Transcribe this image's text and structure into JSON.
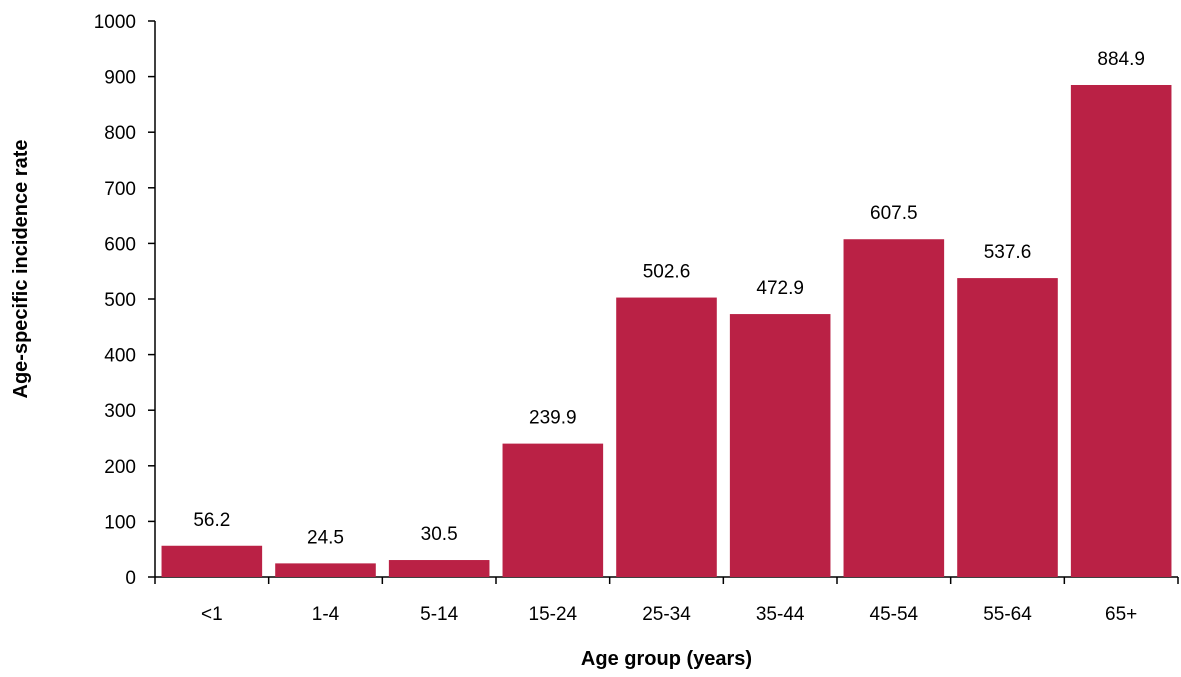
{
  "chart_data": {
    "type": "bar",
    "title": "",
    "xlabel": "Age group (years)",
    "ylabel": "Age-specific incidence rate",
    "categories": [
      "<1",
      "1-4",
      "5-14",
      "15-24",
      "25-34",
      "35-44",
      "45-54",
      "55-64",
      "65+"
    ],
    "values": [
      56.2,
      24.5,
      30.5,
      239.9,
      502.6,
      472.9,
      607.5,
      537.6,
      884.9
    ],
    "data_labels": [
      "56.2",
      "24.5",
      "30.5",
      "239.9",
      "502.6",
      "472.9",
      "607.5",
      "537.6",
      "884.9"
    ],
    "ylim": [
      0,
      1000
    ],
    "yticks": [
      0,
      100,
      200,
      300,
      400,
      500,
      600,
      700,
      800,
      900,
      1000
    ],
    "grid": false,
    "legend": "none",
    "bar_color": "#BA2145"
  }
}
